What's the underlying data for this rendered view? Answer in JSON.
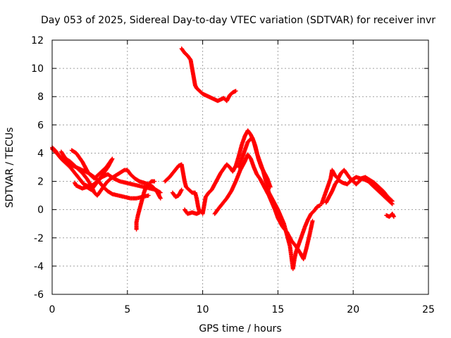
{
  "chart_data": {
    "type": "scatter",
    "title": "Day 053 of 2025, Sidereal Day-to-day VTEC variation (SDTVAR) for receiver invr",
    "xlabel": "GPS time / hours",
    "ylabel": "SDTVAR / TECUs",
    "xlim": [
      0,
      25
    ],
    "ylim": [
      -6,
      12
    ],
    "x_ticks": [
      "0",
      "5",
      "10",
      "15",
      "20",
      "25"
    ],
    "y_ticks": [
      "-6",
      "-4",
      "-2",
      "0",
      "2",
      "4",
      "6",
      "8",
      "10",
      "12"
    ],
    "grid": true,
    "marker": "+",
    "color": "#ff0000",
    "series": [
      {
        "name": "track-a",
        "points": [
          [
            0,
            4.4
          ],
          [
            0.2,
            4.2
          ],
          [
            0.4,
            3.9
          ],
          [
            0.6,
            3.7
          ],
          [
            0.8,
            3.5
          ],
          [
            1.0,
            3.3
          ],
          [
            1.2,
            3.2
          ],
          [
            1.4,
            3.1
          ],
          [
            1.6,
            3.0
          ],
          [
            1.8,
            2.8
          ],
          [
            2.0,
            2.6
          ],
          [
            2.3,
            2.2
          ],
          [
            2.6,
            1.7
          ],
          [
            2.8,
            1.2
          ],
          [
            3.0,
            1.0
          ],
          [
            3.2,
            1.3
          ],
          [
            3.4,
            1.6
          ],
          [
            3.6,
            1.9
          ],
          [
            3.9,
            2.2
          ],
          [
            4.2,
            2.4
          ],
          [
            4.5,
            2.6
          ],
          [
            4.8,
            2.8
          ],
          [
            5.0,
            2.8
          ],
          [
            5.2,
            2.5
          ],
          [
            5.5,
            2.2
          ],
          [
            5.8,
            2.0
          ],
          [
            6.1,
            1.9
          ],
          [
            6.4,
            1.8
          ],
          [
            6.7,
            1.6
          ],
          [
            7.0,
            1.2
          ],
          [
            7.2,
            0.8
          ]
        ]
      },
      {
        "name": "track-b",
        "points": [
          [
            0,
            4.3
          ],
          [
            0.3,
            4.0
          ],
          [
            0.6,
            3.6
          ],
          [
            0.9,
            3.3
          ],
          [
            1.2,
            3.0
          ],
          [
            1.5,
            2.6
          ],
          [
            1.8,
            2.2
          ],
          [
            2.1,
            1.8
          ],
          [
            2.5,
            1.6
          ],
          [
            2.9,
            1.9
          ],
          [
            3.3,
            2.3
          ],
          [
            3.7,
            2.5
          ],
          [
            4.1,
            2.2
          ],
          [
            4.5,
            2.0
          ],
          [
            4.9,
            1.9
          ],
          [
            5.3,
            1.8
          ],
          [
            5.7,
            1.7
          ],
          [
            6.1,
            1.6
          ],
          [
            6.5,
            1.5
          ],
          [
            6.9,
            1.4
          ],
          [
            7.2,
            1.2
          ]
        ]
      },
      {
        "name": "track-c",
        "points": [
          [
            0.6,
            4.1
          ],
          [
            0.9,
            3.6
          ],
          [
            1.2,
            3.4
          ],
          [
            1.6,
            3.0
          ],
          [
            2.0,
            2.8
          ],
          [
            2.4,
            2.6
          ],
          [
            2.8,
            2.3
          ],
          [
            3.1,
            2.0
          ],
          [
            3.4,
            1.6
          ],
          [
            3.7,
            1.3
          ],
          [
            4.0,
            1.1
          ],
          [
            4.4,
            1.0
          ],
          [
            4.8,
            0.9
          ],
          [
            5.2,
            0.8
          ],
          [
            5.6,
            0.8
          ],
          [
            6.0,
            0.9
          ],
          [
            6.4,
            1.0
          ]
        ]
      },
      {
        "name": "track-d",
        "points": [
          [
            1.3,
            4.2
          ],
          [
            1.6,
            4.0
          ],
          [
            2.0,
            3.4
          ],
          [
            2.4,
            2.6
          ],
          [
            2.8,
            2.2
          ],
          [
            3.2,
            2.6
          ],
          [
            3.6,
            3.0
          ],
          [
            4.0,
            3.6
          ],
          [
            3.7,
            3.0
          ],
          [
            3.3,
            2.4
          ],
          [
            2.9,
            1.8
          ],
          [
            2.6,
            1.4
          ],
          [
            2.3,
            1.6
          ],
          [
            2.0,
            1.5
          ],
          [
            1.6,
            1.7
          ],
          [
            1.5,
            1.9
          ]
        ]
      },
      {
        "name": "track-e",
        "points": [
          [
            5.6,
            -1.4
          ],
          [
            5.6,
            -0.9
          ],
          [
            5.7,
            -0.4
          ],
          [
            5.8,
            0.0
          ],
          [
            5.9,
            0.4
          ],
          [
            6.0,
            0.8
          ],
          [
            6.1,
            1.2
          ],
          [
            6.2,
            1.5
          ],
          [
            6.4,
            1.8
          ],
          [
            6.6,
            2.0
          ],
          [
            6.8,
            2.0
          ]
        ]
      },
      {
        "name": "track-f",
        "points": [
          [
            7.5,
            2.0
          ],
          [
            7.8,
            2.3
          ],
          [
            8.1,
            2.7
          ],
          [
            8.4,
            3.1
          ],
          [
            8.6,
            3.2
          ],
          [
            8.7,
            2.6
          ],
          [
            8.8,
            2.0
          ],
          [
            8.9,
            1.6
          ],
          [
            9.1,
            1.4
          ],
          [
            9.3,
            1.2
          ],
          [
            9.5,
            1.2
          ],
          [
            9.6,
            0.8
          ],
          [
            9.7,
            0.2
          ],
          [
            9.8,
            -0.2
          ],
          [
            9.6,
            -0.3
          ],
          [
            9.3,
            -0.2
          ],
          [
            9.0,
            -0.3
          ],
          [
            8.8,
            0.0
          ]
        ]
      },
      {
        "name": "track-g",
        "points": [
          [
            8.0,
            1.2
          ],
          [
            8.2,
            0.9
          ],
          [
            8.4,
            1.0
          ],
          [
            8.6,
            1.4
          ]
        ]
      },
      {
        "name": "track-h",
        "points": [
          [
            10.0,
            -0.3
          ],
          [
            10.1,
            0.3
          ],
          [
            10.2,
            0.9
          ],
          [
            10.4,
            1.2
          ],
          [
            10.6,
            1.4
          ],
          [
            10.8,
            1.8
          ],
          [
            11.0,
            2.2
          ],
          [
            11.2,
            2.6
          ],
          [
            11.4,
            2.9
          ],
          [
            11.6,
            3.2
          ],
          [
            11.8,
            3.0
          ],
          [
            12.0,
            2.7
          ],
          [
            12.2,
            3.1
          ],
          [
            12.4,
            3.8
          ],
          [
            12.6,
            4.6
          ],
          [
            12.8,
            5.2
          ],
          [
            13.0,
            5.6
          ],
          [
            13.2,
            5.3
          ],
          [
            13.4,
            4.8
          ],
          [
            13.6,
            4.0
          ],
          [
            13.8,
            3.4
          ],
          [
            14.0,
            2.8
          ],
          [
            14.2,
            2.0
          ],
          [
            14.4,
            1.2
          ],
          [
            14.6,
            0.8
          ],
          [
            14.8,
            0.4
          ],
          [
            15.0,
            0.0
          ],
          [
            15.2,
            -0.5
          ],
          [
            15.4,
            -1.0
          ],
          [
            15.6,
            -1.8
          ],
          [
            15.8,
            -2.6
          ],
          [
            15.9,
            -3.4
          ],
          [
            16.0,
            -4.2
          ],
          [
            16.1,
            -3.5
          ],
          [
            16.2,
            -3.0
          ],
          [
            16.4,
            -2.4
          ],
          [
            16.6,
            -1.8
          ],
          [
            16.8,
            -1.2
          ],
          [
            17.0,
            -0.7
          ],
          [
            17.2,
            -0.3
          ],
          [
            17.4,
            -0.1
          ],
          [
            17.6,
            0.2
          ],
          [
            17.8,
            0.3
          ]
        ]
      },
      {
        "name": "track-i",
        "points": [
          [
            10.8,
            -0.3
          ],
          [
            11.0,
            0.0
          ],
          [
            11.3,
            0.4
          ],
          [
            11.6,
            0.8
          ],
          [
            11.9,
            1.3
          ],
          [
            12.2,
            2.0
          ],
          [
            12.5,
            2.8
          ],
          [
            12.8,
            3.4
          ],
          [
            13.0,
            3.9
          ],
          [
            13.2,
            3.6
          ],
          [
            13.4,
            3.0
          ],
          [
            13.6,
            2.5
          ],
          [
            13.8,
            2.2
          ],
          [
            14.0,
            1.8
          ],
          [
            14.2,
            1.4
          ],
          [
            14.4,
            1.0
          ],
          [
            14.6,
            0.5
          ],
          [
            14.8,
            0.0
          ],
          [
            15.0,
            -0.6
          ],
          [
            15.3,
            -1.2
          ],
          [
            15.6,
            -1.6
          ],
          [
            15.9,
            -2.2
          ],
          [
            16.2,
            -2.6
          ],
          [
            16.5,
            -3.1
          ],
          [
            16.7,
            -3.5
          ],
          [
            16.9,
            -2.7
          ],
          [
            17.1,
            -1.8
          ],
          [
            17.3,
            -0.8
          ]
        ]
      },
      {
        "name": "track-j",
        "points": [
          [
            12.4,
            3.0
          ],
          [
            12.6,
            3.6
          ],
          [
            12.8,
            4.2
          ],
          [
            13.0,
            4.8
          ],
          [
            13.3,
            5.1
          ],
          [
            13.5,
            4.5
          ],
          [
            13.7,
            3.6
          ],
          [
            13.9,
            3.0
          ],
          [
            14.1,
            2.6
          ],
          [
            14.3,
            2.2
          ],
          [
            14.5,
            1.6
          ]
        ]
      },
      {
        "name": "track-k",
        "points": [
          [
            17.9,
            0.4
          ],
          [
            18.1,
            1.0
          ],
          [
            18.3,
            1.6
          ],
          [
            18.5,
            2.2
          ],
          [
            18.6,
            2.8
          ],
          [
            18.8,
            2.4
          ],
          [
            19.0,
            2.2
          ],
          [
            19.2,
            2.6
          ],
          [
            19.4,
            2.8
          ],
          [
            19.6,
            2.5
          ],
          [
            19.8,
            2.2
          ],
          [
            20.0,
            2.0
          ],
          [
            20.2,
            1.8
          ],
          [
            20.4,
            2.0
          ],
          [
            20.6,
            2.2
          ],
          [
            20.8,
            2.1
          ],
          [
            21.0,
            2.0
          ],
          [
            21.2,
            1.8
          ],
          [
            21.4,
            1.6
          ],
          [
            21.6,
            1.4
          ],
          [
            21.8,
            1.2
          ],
          [
            22.0,
            1.0
          ],
          [
            22.2,
            0.8
          ],
          [
            22.4,
            0.6
          ],
          [
            22.6,
            0.4
          ]
        ]
      },
      {
        "name": "track-l",
        "points": [
          [
            18.2,
            0.5
          ],
          [
            18.4,
            0.9
          ],
          [
            18.6,
            1.3
          ],
          [
            18.8,
            1.8
          ],
          [
            19.0,
            2.1
          ],
          [
            19.3,
            1.9
          ],
          [
            19.6,
            1.8
          ],
          [
            19.9,
            2.1
          ],
          [
            20.2,
            2.3
          ],
          [
            20.5,
            2.2
          ],
          [
            20.8,
            2.3
          ],
          [
            21.1,
            2.1
          ],
          [
            21.4,
            1.9
          ],
          [
            21.7,
            1.6
          ],
          [
            22.0,
            1.3
          ],
          [
            22.3,
            0.9
          ],
          [
            22.6,
            0.6
          ]
        ]
      },
      {
        "name": "track-m",
        "points": [
          [
            22.2,
            -0.4
          ],
          [
            22.4,
            -0.5
          ],
          [
            22.6,
            -0.3
          ],
          [
            22.7,
            -0.5
          ]
        ]
      },
      {
        "name": "track-n",
        "points": [
          [
            8.6,
            11.4
          ],
          [
            8.8,
            11.1
          ],
          [
            9.0,
            10.9
          ],
          [
            9.2,
            10.6
          ],
          [
            9.3,
            10.0
          ],
          [
            9.4,
            9.4
          ],
          [
            9.5,
            8.8
          ],
          [
            9.6,
            8.6
          ],
          [
            9.8,
            8.4
          ],
          [
            10.0,
            8.2
          ],
          [
            10.2,
            8.1
          ],
          [
            10.4,
            8.0
          ],
          [
            10.6,
            7.9
          ],
          [
            10.8,
            7.8
          ],
          [
            11.0,
            7.7
          ],
          [
            11.2,
            7.8
          ],
          [
            11.4,
            7.9
          ],
          [
            11.6,
            7.7
          ],
          [
            11.8,
            8.1
          ],
          [
            12.0,
            8.3
          ],
          [
            12.2,
            8.4
          ]
        ]
      }
    ]
  }
}
